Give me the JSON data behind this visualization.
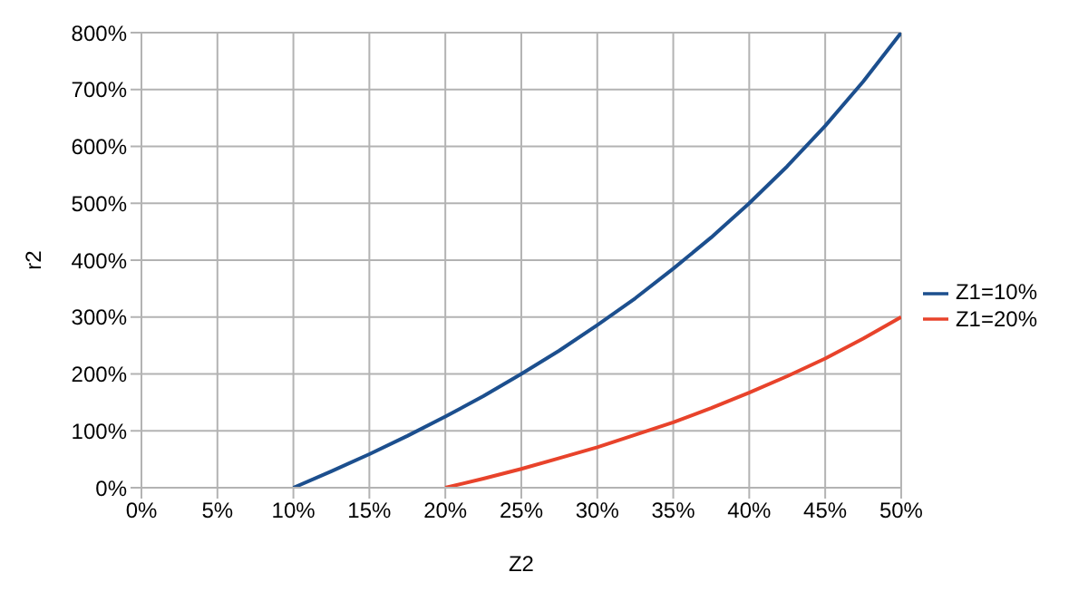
{
  "chart_data": {
    "type": "line",
    "xlabel": "Z2",
    "ylabel": "r2",
    "xlim": [
      0,
      50
    ],
    "xticks": [
      {
        "value": 0,
        "label": "0%"
      },
      {
        "value": 5,
        "label": "5%"
      },
      {
        "value": 10,
        "label": "10%"
      },
      {
        "value": 15,
        "label": "15%"
      },
      {
        "value": 20,
        "label": "20%"
      },
      {
        "value": 25,
        "label": "25%"
      },
      {
        "value": 30,
        "label": "30%"
      },
      {
        "value": 35,
        "label": "35%"
      },
      {
        "value": 40,
        "label": "40%"
      },
      {
        "value": 45,
        "label": "45%"
      },
      {
        "value": 50,
        "label": "50%"
      }
    ],
    "ylim": [
      0,
      800
    ],
    "yticks": [
      {
        "value": 0,
        "label": "0%"
      },
      {
        "value": 100,
        "label": "100%"
      },
      {
        "value": 200,
        "label": "200%"
      },
      {
        "value": 300,
        "label": "300%"
      },
      {
        "value": 400,
        "label": "400%"
      },
      {
        "value": 500,
        "label": "500%"
      },
      {
        "value": 600,
        "label": "600%"
      },
      {
        "value": 700,
        "label": "700%"
      },
      {
        "value": 800,
        "label": "800%"
      }
    ],
    "grid": true,
    "legend": "right",
    "marker": "none",
    "line_style": "solid",
    "series": [
      {
        "name": "Z1=10%",
        "color": "#1c4f8e",
        "x": [
          10,
          12.5,
          15,
          17.5,
          20,
          22.5,
          25,
          27.5,
          30,
          32.5,
          35,
          37.5,
          40,
          42.5,
          45,
          47.5,
          50
        ],
        "values": [
          0,
          29,
          59,
          91,
          125,
          161,
          200,
          241,
          286,
          333,
          385,
          440,
          500,
          565,
          636,
          714,
          800
        ]
      },
      {
        "name": "Z1=20%",
        "color": "#e8432b",
        "x": [
          20,
          22.5,
          25,
          27.5,
          30,
          32.5,
          35,
          37.5,
          40,
          42.5,
          45,
          47.5,
          50
        ],
        "values": [
          0,
          16,
          33,
          52,
          71,
          93,
          115,
          140,
          167,
          196,
          227,
          262,
          300
        ]
      }
    ]
  }
}
